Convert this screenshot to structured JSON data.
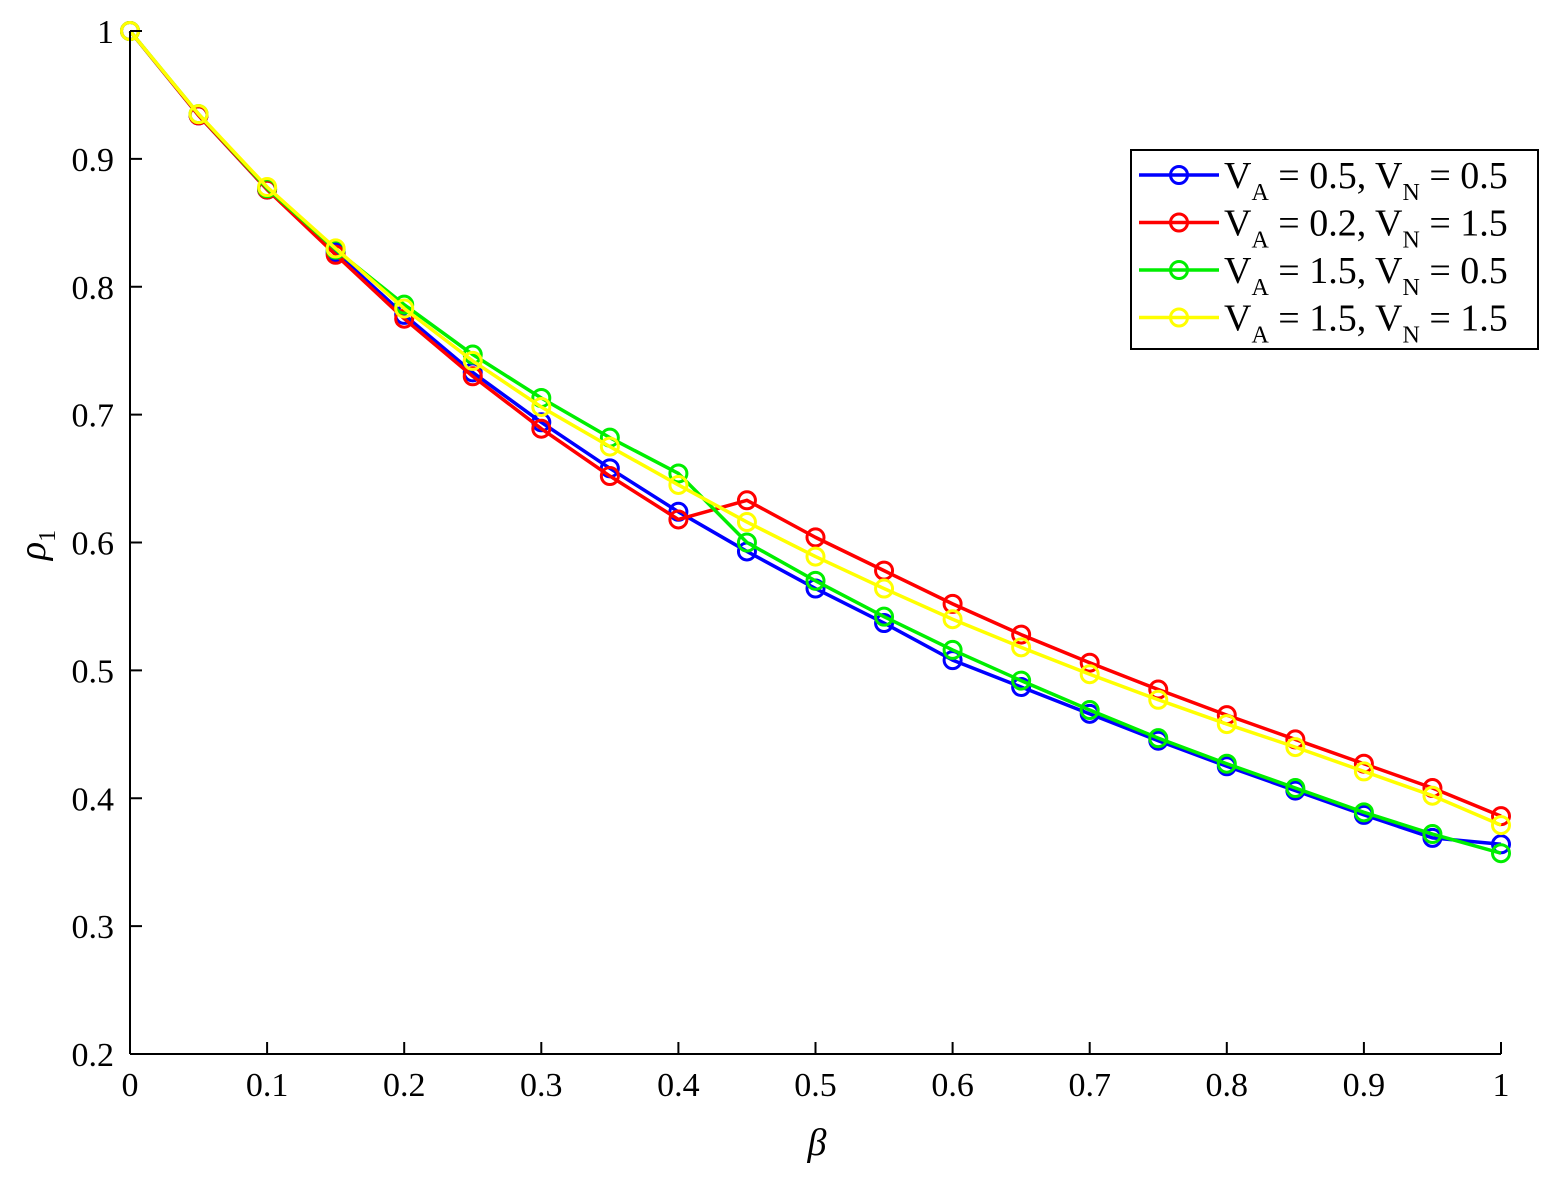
{
  "chart_data": {
    "type": "line",
    "xlabel": "β",
    "ylabel": "ρ",
    "ylabel_sub": "1",
    "xlim": [
      0,
      1
    ],
    "ylim": [
      0.2,
      1
    ],
    "x_ticks": [
      "0",
      "0.1",
      "0.2",
      "0.3",
      "0.4",
      "0.5",
      "0.6",
      "0.7",
      "0.8",
      "0.9",
      "1"
    ],
    "y_ticks": [
      "0.2",
      "0.3",
      "0.4",
      "0.5",
      "0.6",
      "0.7",
      "0.8",
      "0.9",
      "1"
    ],
    "grid": false,
    "legend_position": "top-right",
    "marker": "circle",
    "x": [
      0,
      0.05,
      0.1,
      0.15,
      0.2,
      0.25,
      0.3,
      0.35,
      0.4,
      0.45,
      0.5,
      0.55,
      0.6,
      0.65,
      0.7,
      0.75,
      0.8,
      0.85,
      0.9,
      0.95,
      1
    ],
    "series": [
      {
        "label": [
          {
            "t": "V"
          },
          {
            "t": "A",
            "sub": true
          },
          {
            "t": " = 0.5, V"
          },
          {
            "t": "N",
            "sub": true
          },
          {
            "t": " = 0.5"
          }
        ],
        "color": "#0000ff",
        "values": [
          1.0,
          0.934,
          0.876,
          0.827,
          0.778,
          0.733,
          0.694,
          0.658,
          0.624,
          0.593,
          0.564,
          0.537,
          0.508,
          0.487,
          0.466,
          0.445,
          0.425,
          0.406,
          0.387,
          0.369,
          0.364
        ]
      },
      {
        "label": [
          {
            "t": "V"
          },
          {
            "t": "A",
            "sub": true
          },
          {
            "t": " = 0.2, V"
          },
          {
            "t": "N",
            "sub": true
          },
          {
            "t": " = 1.5"
          }
        ],
        "color": "#ff0000",
        "values": [
          1.0,
          0.934,
          0.876,
          0.825,
          0.775,
          0.73,
          0.689,
          0.652,
          0.618,
          0.633,
          0.604,
          0.578,
          0.552,
          0.528,
          0.506,
          0.485,
          0.465,
          0.446,
          0.427,
          0.408,
          0.386
        ]
      },
      {
        "label": [
          {
            "t": "V"
          },
          {
            "t": "A",
            "sub": true
          },
          {
            "t": " = 1.5, V"
          },
          {
            "t": "N",
            "sub": true
          },
          {
            "t": " = 0.5"
          }
        ],
        "color": "#00ee00",
        "values": [
          1.0,
          0.935,
          0.877,
          0.829,
          0.786,
          0.747,
          0.713,
          0.682,
          0.654,
          0.6,
          0.57,
          0.542,
          0.516,
          0.492,
          0.469,
          0.447,
          0.427,
          0.408,
          0.389,
          0.372,
          0.357
        ]
      },
      {
        "label": [
          {
            "t": "V"
          },
          {
            "t": "A",
            "sub": true
          },
          {
            "t": " = 1.5, V"
          },
          {
            "t": "N",
            "sub": true
          },
          {
            "t": " = 1.5"
          }
        ],
        "color": "#ffff00",
        "values": [
          1.0,
          0.935,
          0.878,
          0.83,
          0.783,
          0.742,
          0.706,
          0.675,
          0.645,
          0.616,
          0.589,
          0.564,
          0.54,
          0.518,
          0.497,
          0.477,
          0.458,
          0.44,
          0.421,
          0.402,
          0.379
        ]
      }
    ]
  }
}
